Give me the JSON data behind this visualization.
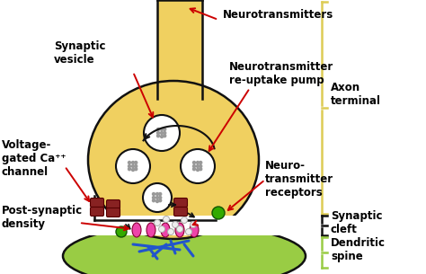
{
  "background_color": "#ffffff",
  "axon_terminal_color": "#f0d060",
  "axon_terminal_outline": "#111111",
  "dendritic_spine_color": "#99cc44",
  "dendritic_spine_outline": "#111111",
  "vesicle_fill": "#ffffff",
  "vesicle_outline": "#111111",
  "vesicle_dot_color": "#999999",
  "receptor_color": "#882222",
  "postsynaptic_receptor_color": "#ee44aa",
  "green_dot_color": "#33aa00",
  "arrow_color": "#cc0000",
  "black_arrow_color": "#111111",
  "text_color": "#000000",
  "blue_network_color": "#2255cc",
  "axon_brace_color": "#ddcc55",
  "cleft_brace_color": "#111111",
  "dendrite_brace_color": "#99cc44",
  "labels": {
    "neurotransmitters": "Neurotransmitters",
    "synaptic_vesicle": "Synaptic\nvesicle",
    "reuptake_pump": "Neurotransmitter\nre-uptake pump",
    "voltage_gated": "Voltage-\ngated Ca⁺⁺\nchannel",
    "neurotransmitter_receptors": "Neuro-\ntransmitter\nreceptors",
    "post_synaptic_density": "Post-synaptic\ndensity",
    "axon_terminal": "Axon\nterminal",
    "synaptic_cleft": "Synaptic\ncleft",
    "dendritic_spine": "Dendritic\nspine"
  },
  "figsize": [
    4.74,
    3.05
  ],
  "dpi": 100
}
